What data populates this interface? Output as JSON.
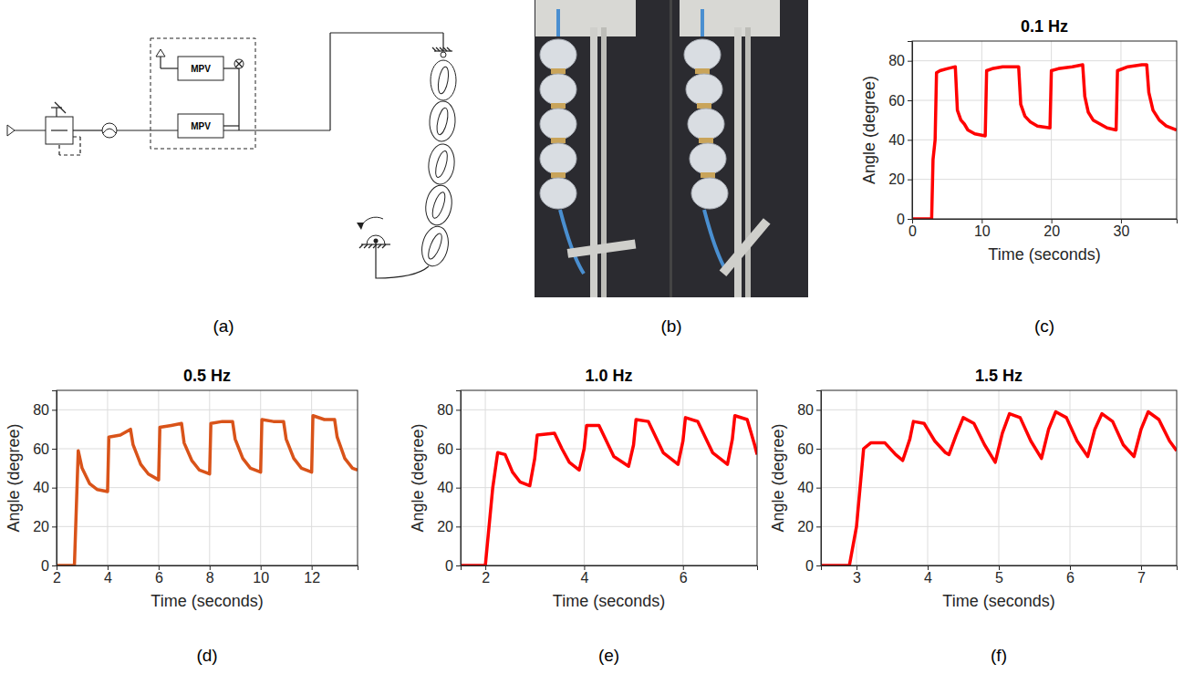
{
  "chart_data": [
    {
      "type": "line",
      "title": "0.1 Hz",
      "panel": "(c)",
      "x_label": "Time (seconds)",
      "y_label": "Angle (degree)",
      "xlim": [
        0,
        38
      ],
      "ylim": [
        0,
        90
      ],
      "xticks": [
        0,
        10,
        20,
        30
      ],
      "yticks": [
        0,
        20,
        40,
        60,
        80
      ],
      "grid": true,
      "color": "#ff0000",
      "x": [
        0,
        2.8,
        3.0,
        3.3,
        3.5,
        4.0,
        5,
        6.2,
        6.5,
        7,
        7.5,
        8,
        9,
        10.5,
        10.7,
        11.5,
        13,
        15.3,
        15.6,
        16.2,
        17,
        18,
        19.8,
        20,
        21,
        23,
        24.5,
        24.8,
        25.3,
        26,
        27,
        28,
        29.3,
        29.5,
        31,
        33,
        33.7,
        34,
        34.6,
        35.5,
        36.5,
        38
      ],
      "values": [
        0,
        0,
        30,
        40,
        74,
        75,
        76,
        77,
        55,
        50,
        48,
        45,
        43,
        42,
        75,
        76,
        77,
        77,
        58,
        52,
        49,
        47,
        46,
        75,
        76,
        77,
        78,
        62,
        54,
        50,
        48,
        46,
        45,
        75,
        77,
        78,
        78,
        64,
        55,
        50,
        47,
        45
      ]
    },
    {
      "type": "line",
      "title": "0.5 Hz",
      "panel": "(d)",
      "x_label": "Time (seconds)",
      "y_label": "Angle (degree)",
      "xlim": [
        2,
        13.8
      ],
      "ylim": [
        0,
        90
      ],
      "xticks": [
        2,
        4,
        6,
        8,
        10,
        12
      ],
      "yticks": [
        0,
        20,
        40,
        60,
        80
      ],
      "grid": true,
      "color": "#d95319",
      "x": [
        2,
        2.7,
        2.85,
        3.0,
        3.3,
        3.6,
        4.0,
        4.05,
        4.5,
        4.9,
        5.0,
        5.3,
        5.6,
        6.0,
        6.05,
        6.5,
        6.9,
        7.0,
        7.3,
        7.6,
        8.0,
        8.05,
        8.5,
        8.9,
        9.0,
        9.3,
        9.6,
        10.0,
        10.05,
        10.5,
        10.9,
        11.0,
        11.3,
        11.6,
        12.0,
        12.05,
        12.5,
        12.9,
        13.0,
        13.3,
        13.6,
        13.8
      ],
      "values": [
        0,
        0,
        59,
        50,
        42,
        39,
        38,
        66,
        67,
        70,
        62,
        52,
        47,
        44,
        71,
        72,
        73,
        63,
        54,
        49,
        47,
        73,
        74,
        74,
        65,
        55,
        50,
        48,
        75,
        74,
        74,
        65,
        55,
        50,
        48,
        77,
        75,
        75,
        66,
        55,
        50,
        49
      ]
    },
    {
      "type": "line",
      "title": "1.0 Hz",
      "panel": "(e)",
      "x_label": "Time (seconds)",
      "y_label": "Angle (degree)",
      "xlim": [
        1.5,
        7.5
      ],
      "ylim": [
        0,
        90
      ],
      "xticks": [
        2,
        4,
        6
      ],
      "yticks": [
        0,
        20,
        40,
        60,
        80
      ],
      "grid": true,
      "color": "#ff0000",
      "x": [
        1.5,
        2.0,
        2.15,
        2.25,
        2.4,
        2.55,
        2.7,
        2.9,
        3.0,
        3.05,
        3.4,
        3.55,
        3.7,
        3.9,
        4.0,
        4.05,
        4.3,
        4.45,
        4.6,
        4.9,
        5.0,
        5.05,
        5.3,
        5.45,
        5.6,
        5.9,
        6.0,
        6.05,
        6.3,
        6.45,
        6.6,
        6.9,
        7.0,
        7.05,
        7.3,
        7.45,
        7.5
      ],
      "values": [
        0,
        0,
        40,
        58,
        57,
        48,
        43,
        41,
        55,
        67,
        68,
        60,
        53,
        49,
        60,
        72,
        72,
        64,
        56,
        51,
        62,
        75,
        74,
        66,
        58,
        52,
        64,
        76,
        74,
        66,
        58,
        52,
        65,
        77,
        75,
        62,
        57
      ]
    },
    {
      "type": "line",
      "title": "1.5 Hz",
      "panel": "(f)",
      "x_label": "Time (seconds)",
      "y_label": "Angle (degree)",
      "xlim": [
        2.5,
        7.5
      ],
      "ylim": [
        0,
        90
      ],
      "xticks": [
        3,
        4,
        5,
        6,
        7
      ],
      "yticks": [
        0,
        20,
        40,
        60,
        80
      ],
      "grid": true,
      "color": "#ff0000",
      "x": [
        2.5,
        2.9,
        3.0,
        3.1,
        3.2,
        3.4,
        3.55,
        3.65,
        3.75,
        3.8,
        3.95,
        4.1,
        4.25,
        4.3,
        4.4,
        4.5,
        4.65,
        4.8,
        4.95,
        5.05,
        5.15,
        5.3,
        5.45,
        5.6,
        5.7,
        5.8,
        5.95,
        6.1,
        6.25,
        6.35,
        6.45,
        6.6,
        6.75,
        6.9,
        7.0,
        7.1,
        7.25,
        7.4,
        7.5
      ],
      "values": [
        0,
        0,
        20,
        60,
        63,
        63,
        57,
        54,
        65,
        74,
        73,
        64,
        58,
        57,
        67,
        76,
        73,
        62,
        53,
        68,
        78,
        76,
        64,
        55,
        70,
        79,
        76,
        64,
        56,
        70,
        78,
        74,
        62,
        56,
        70,
        79,
        75,
        64,
        59
      ]
    }
  ],
  "figure": {
    "diagram": {
      "panel": "(a)",
      "valve_labels": [
        "MPV",
        "MPV"
      ]
    },
    "photo": {
      "panel": "(b)"
    }
  }
}
